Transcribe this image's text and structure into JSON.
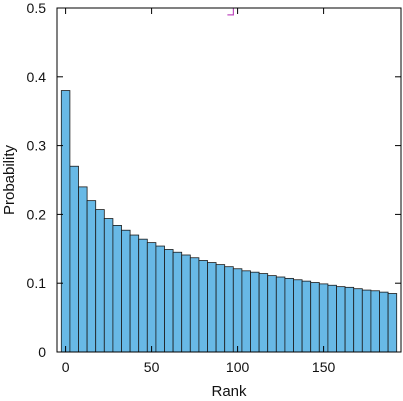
{
  "chart_data": {
    "type": "bar",
    "xlabel": "Rank",
    "ylabel": "Probability",
    "xlim": [
      -5,
      195
    ],
    "ylim": [
      0,
      0.5
    ],
    "xticks": [
      0,
      50,
      100,
      150
    ],
    "yticks": [
      0,
      0.1,
      0.2,
      0.3,
      0.4,
      0.5
    ],
    "bin_width": 5,
    "bar_color": "#68b9e6",
    "marker_color": "#c04fc0",
    "marker": {
      "x": 97,
      "y": 0.49
    },
    "grid": false,
    "x": [
      0,
      5,
      10,
      15,
      20,
      25,
      30,
      35,
      40,
      45,
      50,
      55,
      60,
      65,
      70,
      75,
      80,
      85,
      90,
      95,
      100,
      105,
      110,
      115,
      120,
      125,
      130,
      135,
      140,
      145,
      150,
      155,
      160,
      165,
      170,
      175,
      180,
      185,
      190
    ],
    "values": [
      0.38,
      0.27,
      0.24,
      0.22,
      0.207,
      0.194,
      0.184,
      0.177,
      0.17,
      0.164,
      0.159,
      0.154,
      0.149,
      0.145,
      0.141,
      0.137,
      0.133,
      0.13,
      0.127,
      0.124,
      0.121,
      0.118,
      0.116,
      0.114,
      0.111,
      0.109,
      0.107,
      0.105,
      0.103,
      0.101,
      0.099,
      0.097,
      0.095,
      0.094,
      0.092,
      0.09,
      0.089,
      0.087,
      0.085
    ]
  }
}
